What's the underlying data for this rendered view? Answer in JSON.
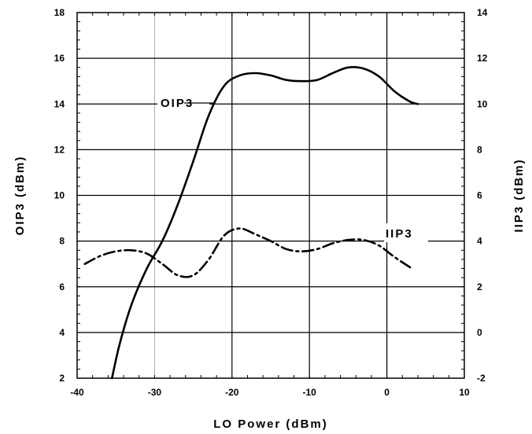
{
  "chart_data": {
    "type": "line",
    "xlabel": "LO Power (dBm)",
    "ylabel": "OIP3 (dBm)",
    "y2label": "IIP3 (dBm)",
    "xlim": [
      -40,
      10
    ],
    "ylim": [
      2,
      18
    ],
    "y2lim": [
      -2,
      14
    ],
    "x_ticks": [
      "-40",
      "-30",
      "-20",
      "-10",
      "0",
      "10"
    ],
    "y_ticks": [
      "2",
      "4",
      "6",
      "8",
      "10",
      "12",
      "14",
      "16",
      "18"
    ],
    "y2_ticks": [
      "-2",
      "0",
      "2",
      "4",
      "6",
      "8",
      "10",
      "12",
      "14"
    ],
    "grid": true,
    "series": [
      {
        "name": "OIP3",
        "axis": "left",
        "style": "solid",
        "points": [
          [
            -35.5,
            2.0
          ],
          [
            -34.5,
            3.5
          ],
          [
            -33,
            5.2
          ],
          [
            -31,
            6.8
          ],
          [
            -29,
            8.0
          ],
          [
            -27,
            9.6
          ],
          [
            -25,
            11.5
          ],
          [
            -23,
            13.5
          ],
          [
            -21,
            14.8
          ],
          [
            -19,
            15.25
          ],
          [
            -17,
            15.35
          ],
          [
            -15,
            15.25
          ],
          [
            -13,
            15.05
          ],
          [
            -11,
            15.0
          ],
          [
            -9,
            15.05
          ],
          [
            -7,
            15.35
          ],
          [
            -5,
            15.6
          ],
          [
            -3,
            15.55
          ],
          [
            -1,
            15.2
          ],
          [
            1,
            14.55
          ],
          [
            3,
            14.1
          ],
          [
            4,
            14.0
          ]
        ]
      },
      {
        "name": "IIP3",
        "axis": "right",
        "style": "dashed",
        "points": [
          [
            -39,
            3.0
          ],
          [
            -37,
            3.35
          ],
          [
            -35,
            3.55
          ],
          [
            -33,
            3.6
          ],
          [
            -31,
            3.45
          ],
          [
            -29,
            3.0
          ],
          [
            -27,
            2.5
          ],
          [
            -25,
            2.5
          ],
          [
            -23,
            3.2
          ],
          [
            -21,
            4.25
          ],
          [
            -19,
            4.55
          ],
          [
            -17,
            4.3
          ],
          [
            -15,
            4.0
          ],
          [
            -13,
            3.65
          ],
          [
            -11,
            3.55
          ],
          [
            -9,
            3.65
          ],
          [
            -7,
            3.9
          ],
          [
            -5,
            4.05
          ],
          [
            -3,
            4.05
          ],
          [
            -1,
            3.8
          ],
          [
            1,
            3.3
          ],
          [
            3,
            2.85
          ]
        ]
      }
    ]
  }
}
